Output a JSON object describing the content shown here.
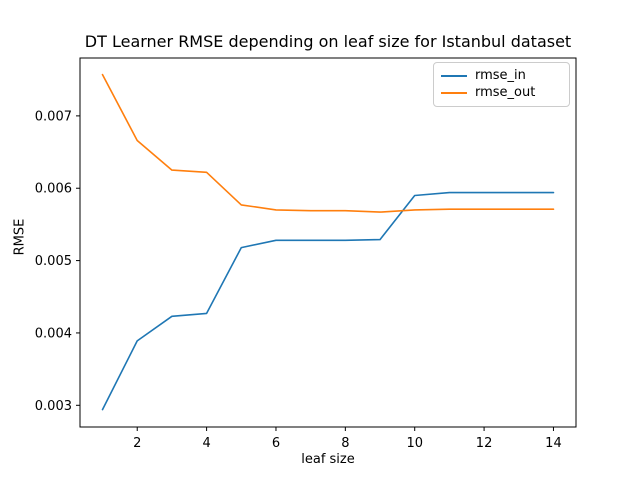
{
  "chart_data": {
    "type": "line",
    "title": "DT Learner RMSE depending on leaf size for Istanbul dataset",
    "xlabel": "leaf size",
    "ylabel": "RMSE",
    "x": [
      1,
      2,
      3,
      4,
      5,
      6,
      7,
      8,
      9,
      10,
      11,
      12,
      13,
      14
    ],
    "series": [
      {
        "name": "rmse_in",
        "color": "#1f77b4",
        "values": [
          0.00294,
          0.00389,
          0.00423,
          0.00427,
          0.00518,
          0.00528,
          0.00528,
          0.00528,
          0.00529,
          0.0059,
          0.00594,
          0.00594,
          0.00594,
          0.00594
        ]
      },
      {
        "name": "rmse_out",
        "color": "#ff7f0e",
        "values": [
          0.00757,
          0.00666,
          0.00625,
          0.00622,
          0.00577,
          0.0057,
          0.00569,
          0.00569,
          0.00567,
          0.0057,
          0.00571,
          0.00571,
          0.00571,
          0.00571
        ]
      }
    ],
    "xlim": [
      0.35,
      14.65
    ],
    "ylim": [
      0.0027,
      0.0078
    ],
    "x_ticks": [
      2,
      4,
      6,
      8,
      10,
      12,
      14
    ],
    "x_tick_labels": [
      "2",
      "4",
      "6",
      "8",
      "10",
      "12",
      "14"
    ],
    "y_ticks": [
      0.003,
      0.004,
      0.005,
      0.006,
      0.007
    ],
    "y_tick_labels": [
      "0.003",
      "0.004",
      "0.005",
      "0.006",
      "0.007"
    ],
    "grid": false,
    "legend_position": "upper right",
    "spine_color": "#000000",
    "background_color": "#ffffff"
  }
}
